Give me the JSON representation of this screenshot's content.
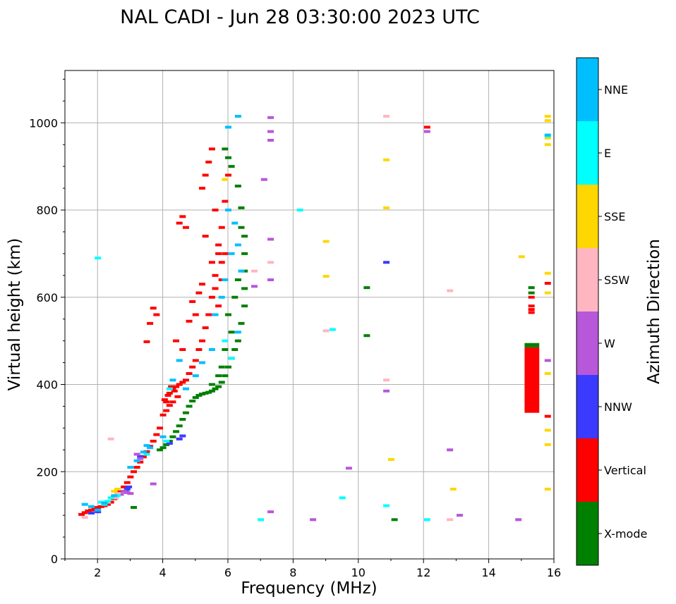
{
  "chart_data": {
    "type": "scatter",
    "title": "NAL CADI - Jun 28 03:30:00 2023 UTC",
    "xlabel": "Frequency (MHz)",
    "ylabel": "Virtual height (km)",
    "xlim": [
      1,
      16
    ],
    "ylim": [
      0,
      1120
    ],
    "xticks": [
      2,
      4,
      6,
      8,
      10,
      12,
      14,
      16
    ],
    "yticks": [
      0,
      200,
      400,
      600,
      800,
      1000
    ],
    "grid": true,
    "colorbar": {
      "title": "Azimuth Direction",
      "entries": [
        {
          "name": "X-mode",
          "color": "#008000"
        },
        {
          "name": "Vertical",
          "color": "#ff0000"
        },
        {
          "name": "NNW",
          "color": "#3b3bff"
        },
        {
          "name": "W",
          "color": "#b757d9"
        },
        {
          "name": "SSW",
          "color": "#ffb6c1"
        },
        {
          "name": "SSE",
          "color": "#ffd700"
        },
        {
          "name": "E",
          "color": "#00ffff"
        },
        {
          "name": "NNE",
          "color": "#00bfff"
        }
      ]
    },
    "series": [
      {
        "name": "Vertical",
        "color": "#ff0000",
        "points": [
          [
            1.5,
            102
          ],
          [
            1.6,
            106
          ],
          [
            1.7,
            110
          ],
          [
            1.8,
            112
          ],
          [
            1.9,
            115
          ],
          [
            2.0,
            118
          ],
          [
            2.1,
            120
          ],
          [
            2.2,
            122
          ],
          [
            2.3,
            125
          ],
          [
            2.4,
            130
          ],
          [
            2.5,
            138
          ],
          [
            2.6,
            146
          ],
          [
            2.7,
            155
          ],
          [
            2.8,
            165
          ],
          [
            2.9,
            175
          ],
          [
            3.0,
            188
          ],
          [
            3.1,
            200
          ],
          [
            3.2,
            210
          ],
          [
            3.3,
            222
          ],
          [
            3.4,
            234
          ],
          [
            3.5,
            246
          ],
          [
            3.6,
            258
          ],
          [
            3.7,
            270
          ],
          [
            3.8,
            285
          ],
          [
            3.9,
            300
          ],
          [
            4.0,
            330
          ],
          [
            4.1,
            360
          ],
          [
            4.2,
            380
          ],
          [
            4.3,
            390
          ],
          [
            4.4,
            395
          ],
          [
            4.5,
            400
          ],
          [
            4.6,
            405
          ],
          [
            4.7,
            410
          ],
          [
            4.8,
            425
          ],
          [
            4.9,
            440
          ],
          [
            5.0,
            455
          ],
          [
            5.1,
            480
          ],
          [
            5.2,
            500
          ],
          [
            5.3,
            530
          ],
          [
            5.4,
            560
          ],
          [
            5.5,
            600
          ],
          [
            5.6,
            650
          ],
          [
            5.7,
            700
          ],
          [
            5.8,
            760
          ],
          [
            5.9,
            820
          ],
          [
            6.0,
            880
          ],
          [
            4.05,
            365
          ],
          [
            4.15,
            375
          ],
          [
            4.25,
            395
          ],
          [
            4.35,
            385
          ],
          [
            4.45,
            372
          ],
          [
            4.1,
            340
          ],
          [
            4.2,
            352
          ],
          [
            4.3,
            360
          ],
          [
            3.8,
            560
          ],
          [
            3.7,
            575
          ],
          [
            3.6,
            540
          ],
          [
            3.5,
            498
          ],
          [
            4.5,
            770
          ],
          [
            4.6,
            785
          ],
          [
            4.7,
            760
          ],
          [
            5.4,
            910
          ],
          [
            5.5,
            940
          ],
          [
            5.3,
            880
          ],
          [
            5.2,
            850
          ],
          [
            5.6,
            800
          ],
          [
            5.7,
            720
          ],
          [
            5.8,
            680
          ],
          [
            5.5,
            680
          ],
          [
            5.6,
            620
          ],
          [
            5.7,
            580
          ],
          [
            5.8,
            640
          ],
          [
            5.9,
            700
          ],
          [
            5.3,
            740
          ],
          [
            5.1,
            610
          ],
          [
            5.2,
            630
          ],
          [
            5.0,
            560
          ],
          [
            4.9,
            590
          ],
          [
            4.8,
            545
          ],
          [
            4.4,
            500
          ],
          [
            4.6,
            480
          ],
          [
            12.1,
            990
          ],
          [
            15.8,
            632
          ],
          [
            15.8,
            327
          ],
          [
            15.3,
            580
          ],
          [
            15.3,
            572
          ],
          [
            15.3,
            565
          ],
          [
            15.3,
            600
          ]
        ]
      },
      {
        "name": "X-mode",
        "color": "#008000",
        "points": [
          [
            3.9,
            250
          ],
          [
            4.0,
            255
          ],
          [
            4.1,
            262
          ],
          [
            4.2,
            270
          ],
          [
            4.3,
            280
          ],
          [
            4.4,
            292
          ],
          [
            4.5,
            305
          ],
          [
            4.6,
            320
          ],
          [
            4.7,
            335
          ],
          [
            4.8,
            350
          ],
          [
            4.9,
            362
          ],
          [
            5.0,
            370
          ],
          [
            5.1,
            375
          ],
          [
            5.2,
            378
          ],
          [
            5.3,
            380
          ],
          [
            5.4,
            382
          ],
          [
            5.5,
            385
          ],
          [
            5.6,
            390
          ],
          [
            5.7,
            395
          ],
          [
            5.8,
            405
          ],
          [
            5.9,
            420
          ],
          [
            6.0,
            440
          ],
          [
            6.1,
            460
          ],
          [
            6.2,
            480
          ],
          [
            6.3,
            500
          ],
          [
            6.4,
            540
          ],
          [
            6.5,
            580
          ],
          [
            6.5,
            620
          ],
          [
            6.5,
            660
          ],
          [
            6.5,
            700
          ],
          [
            6.5,
            740
          ],
          [
            6.4,
            760
          ],
          [
            6.4,
            805
          ],
          [
            6.3,
            855
          ],
          [
            6.1,
            900
          ],
          [
            6.0,
            920
          ],
          [
            5.9,
            940
          ],
          [
            6.2,
            600
          ],
          [
            6.3,
            640
          ],
          [
            6.0,
            560
          ],
          [
            6.1,
            520
          ],
          [
            5.9,
            480
          ],
          [
            5.8,
            440
          ],
          [
            5.7,
            420
          ],
          [
            5.5,
            400
          ],
          [
            10.25,
            622
          ],
          [
            10.25,
            512
          ],
          [
            11.1,
            90
          ],
          [
            15.3,
            490
          ],
          [
            15.3,
            610
          ],
          [
            15.3,
            622
          ],
          [
            3.1,
            118
          ]
        ]
      },
      {
        "name": "NNW",
        "color": "#3b3bff",
        "points": [
          [
            2.9,
            160
          ],
          [
            2.95,
            165
          ],
          [
            2.85,
            155
          ],
          [
            4.5,
            275
          ],
          [
            4.6,
            282
          ],
          [
            4.2,
            265
          ],
          [
            10.85,
            680
          ],
          [
            1.8,
            105
          ],
          [
            2.0,
            108
          ],
          [
            3.3,
            235
          ]
        ]
      },
      {
        "name": "W",
        "color": "#b757d9",
        "points": [
          [
            2.8,
            155
          ],
          [
            2.9,
            152
          ],
          [
            3.0,
            150
          ],
          [
            2.7,
            148
          ],
          [
            3.2,
            240
          ],
          [
            3.3,
            230
          ],
          [
            3.7,
            172
          ],
          [
            7.3,
            1012
          ],
          [
            7.3,
            980
          ],
          [
            7.3,
            960
          ],
          [
            6.8,
            625
          ],
          [
            7.3,
            733
          ],
          [
            7.1,
            870
          ],
          [
            7.3,
            640
          ],
          [
            7.3,
            108
          ],
          [
            8.6,
            90
          ],
          [
            9.7,
            208
          ],
          [
            10.85,
            385
          ],
          [
            12.1,
            980
          ],
          [
            12.8,
            250
          ],
          [
            13.1,
            100
          ],
          [
            14.9,
            90
          ],
          [
            15.8,
            455
          ]
        ]
      },
      {
        "name": "SSW",
        "color": "#ffb6c1",
        "points": [
          [
            2.4,
            275
          ],
          [
            2.5,
            145
          ],
          [
            2.6,
            150
          ],
          [
            2.55,
            140
          ],
          [
            2.3,
            130
          ],
          [
            1.6,
            95
          ],
          [
            9.0,
            523
          ],
          [
            10.85,
            410
          ],
          [
            10.85,
            1015
          ],
          [
            12.8,
            615
          ],
          [
            12.8,
            90
          ],
          [
            7.3,
            680
          ],
          [
            6.8,
            660
          ]
        ]
      },
      {
        "name": "SSE",
        "color": "#ffd700",
        "points": [
          [
            2.5,
            155
          ],
          [
            2.6,
            160
          ],
          [
            2.4,
            140
          ],
          [
            9.0,
            728
          ],
          [
            9.0,
            648
          ],
          [
            10.85,
            805
          ],
          [
            10.85,
            915
          ],
          [
            11.0,
            228
          ],
          [
            12.9,
            160
          ],
          [
            15.0,
            693
          ],
          [
            15.8,
            1015
          ],
          [
            15.8,
            1005
          ],
          [
            15.8,
            950
          ],
          [
            15.8,
            965
          ],
          [
            15.8,
            655
          ],
          [
            15.8,
            610
          ],
          [
            15.8,
            425
          ],
          [
            15.8,
            295
          ],
          [
            15.8,
            262
          ],
          [
            15.8,
            160
          ],
          [
            5.9,
            870
          ]
        ]
      },
      {
        "name": "E",
        "color": "#00ffff",
        "points": [
          [
            2.0,
            690
          ],
          [
            2.1,
            130
          ],
          [
            2.2,
            125
          ],
          [
            2.3,
            132
          ],
          [
            2.4,
            140
          ],
          [
            2.6,
            145
          ],
          [
            3.5,
            240
          ],
          [
            4.1,
            270
          ],
          [
            4.2,
            390
          ],
          [
            5.9,
            500
          ],
          [
            6.1,
            460
          ],
          [
            8.2,
            800
          ],
          [
            9.2,
            526
          ],
          [
            9.5,
            140
          ],
          [
            10.85,
            122
          ],
          [
            12.1,
            90
          ],
          [
            7.0,
            90
          ],
          [
            15.8,
            970
          ]
        ]
      },
      {
        "name": "NNE",
        "color": "#00bfff",
        "points": [
          [
            1.6,
            125
          ],
          [
            1.8,
            120
          ],
          [
            2.0,
            112
          ],
          [
            2.2,
            128
          ],
          [
            2.5,
            145
          ],
          [
            3.0,
            210
          ],
          [
            3.2,
            225
          ],
          [
            3.4,
            245
          ],
          [
            3.5,
            260
          ],
          [
            3.6,
            255
          ],
          [
            4.0,
            280
          ],
          [
            4.3,
            410
          ],
          [
            4.5,
            455
          ],
          [
            4.7,
            390
          ],
          [
            5.0,
            420
          ],
          [
            5.2,
            450
          ],
          [
            5.5,
            480
          ],
          [
            5.6,
            560
          ],
          [
            5.8,
            600
          ],
          [
            5.9,
            640
          ],
          [
            6.1,
            700
          ],
          [
            6.3,
            720
          ],
          [
            6.3,
            1015
          ],
          [
            6.0,
            990
          ],
          [
            6.3,
            520
          ],
          [
            6.4,
            660
          ],
          [
            6.2,
            770
          ],
          [
            6.0,
            800
          ],
          [
            15.8,
            972
          ]
        ]
      }
    ],
    "bars": [
      {
        "name": "Vertical",
        "color": "#ff0000",
        "x": [
          15.1,
          15.55
        ],
        "y": [
          335,
          485
        ]
      },
      {
        "name": "X-mode",
        "color": "#008000",
        "x": [
          15.1,
          15.55
        ],
        "y": [
          485,
          495
        ]
      }
    ]
  }
}
